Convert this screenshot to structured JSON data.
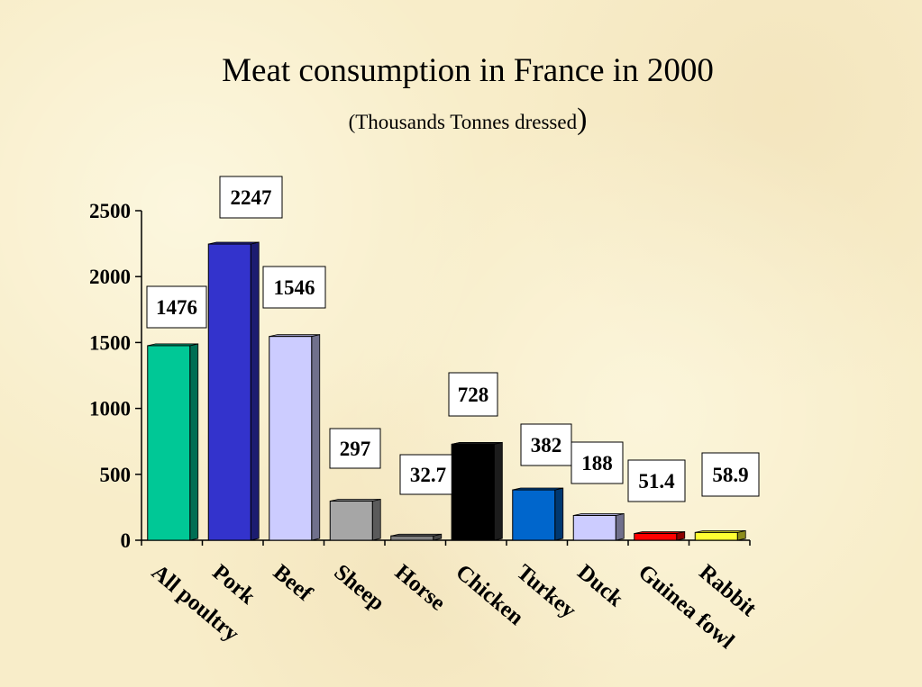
{
  "chart_data": {
    "type": "bar",
    "title": "Meat consumption in France in 2000",
    "subtitle": "(Thousands Tonnes dressed",
    "subtitle_close": ")",
    "xlabel": "",
    "ylabel": "",
    "ylim": [
      0,
      2500
    ],
    "yticks": [
      "0",
      "500",
      "1000",
      "1500",
      "2000",
      "2500"
    ],
    "grid": false,
    "categories": [
      "All poultry",
      "Pork",
      "Beef",
      "Sheep",
      "Horse",
      "Chicken",
      "Turkey",
      "Duck",
      "Guinea fowl",
      "Rabbit"
    ],
    "values": [
      1476,
      2247,
      1546,
      297,
      32.7,
      728,
      382,
      188,
      51.4,
      58.9
    ],
    "value_labels": [
      "1476",
      "2247",
      "1546",
      "297",
      "32.7",
      "728",
      "382",
      "188",
      "51.4",
      "58.9"
    ],
    "colors": [
      "#00c896",
      "#3333cc",
      "#ccccff",
      "#a6a6a6",
      "#808080",
      "#000000",
      "#0066cc",
      "#ccccff",
      "#ff0000",
      "#ffff33"
    ]
  }
}
